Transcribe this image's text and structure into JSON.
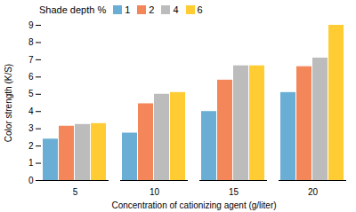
{
  "chart_data": {
    "type": "bar",
    "xlabel": "Concentration of cationizing agent (g/liter)",
    "ylabel": "Color strength (K/S)",
    "categories": [
      5,
      10,
      15,
      20
    ],
    "series": [
      {
        "name": "1",
        "color": "#6AAED6",
        "values": [
          2.4,
          2.75,
          4.0,
          5.1
        ]
      },
      {
        "name": "2",
        "color": "#F4875A",
        "values": [
          3.15,
          4.45,
          5.82,
          6.6
        ]
      },
      {
        "name": "4",
        "color": "#BCBCBC",
        "values": [
          3.25,
          5.0,
          6.65,
          7.1
        ]
      },
      {
        "name": "6",
        "color": "#FFCC33",
        "values": [
          3.3,
          5.1,
          6.65,
          9.0
        ]
      }
    ],
    "legend_title": "Shade depth %",
    "legend": "upper left",
    "ylim": [
      0,
      9
    ],
    "yticks": [
      0,
      1,
      2,
      3,
      4,
      5,
      6,
      7,
      8,
      9
    ],
    "grid": false
  }
}
